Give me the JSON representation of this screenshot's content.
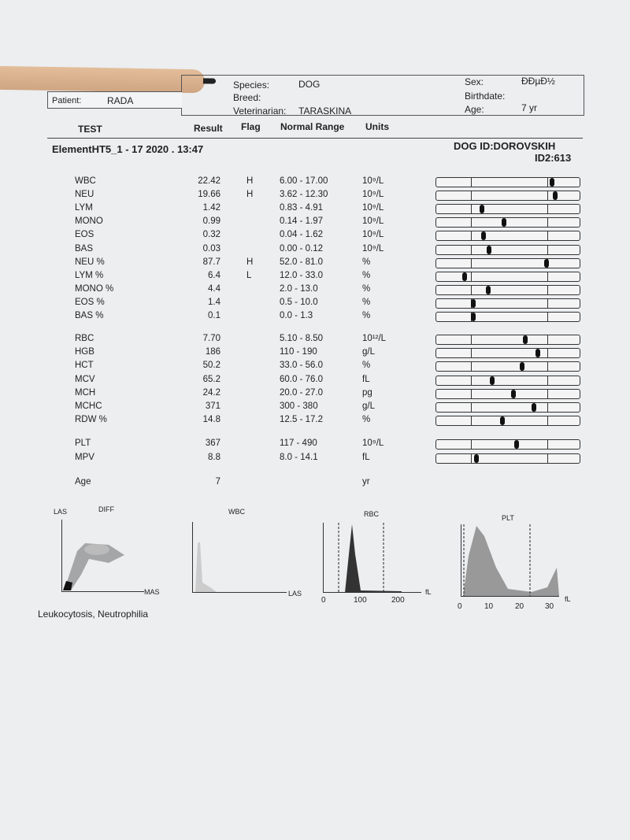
{
  "header": {
    "species_label": "Species:",
    "species": "DOG",
    "breed_label": "Breed:",
    "breed": "",
    "vet_label": "Veterinarian:",
    "vet": "TARASKINA",
    "sex_label": "Sex:",
    "sex": "ÐÐµÐ½",
    "birthdate_label": "Birthdate:",
    "age_label": "Age:",
    "age": "7 yr",
    "patient_label": "Patient:",
    "patient": "RADA"
  },
  "columns": {
    "test": "TEST",
    "result": "Result",
    "flag": "Flag",
    "range": "Normal Range",
    "units": "Units"
  },
  "run": {
    "title": "ElementHT5_1 - 17  2020 . 13:47",
    "id1": "DOG  ID:DOROVSKIH",
    "id2": "ID2:613"
  },
  "groups": [
    [
      {
        "name": "WBC",
        "result": "22.42",
        "flag": "H",
        "range": "6.00 - 17.00",
        "units": "10⁹/L",
        "pos": 0.81
      },
      {
        "name": "NEU",
        "result": "19.66",
        "flag": "H",
        "range": "3.62 - 12.30",
        "units": "10⁹/L",
        "pos": 0.83
      },
      {
        "name": "LYM",
        "result": "1.42",
        "flag": "",
        "range": "0.83 - 4.91",
        "units": "10⁹/L",
        "pos": 0.32
      },
      {
        "name": "MONO",
        "result": "0.99",
        "flag": "",
        "range": "0.14 - 1.97",
        "units": "10⁹/L",
        "pos": 0.47
      },
      {
        "name": "EOS",
        "result": "0.32",
        "flag": "",
        "range": "0.04 - 1.62",
        "units": "10⁹/L",
        "pos": 0.33
      },
      {
        "name": "BAS",
        "result": "0.03",
        "flag": "",
        "range": "0.00 - 0.12",
        "units": "10⁹/L",
        "pos": 0.37
      },
      {
        "name": "NEU %",
        "result": "87.7",
        "flag": "H",
        "range": "52.0 - 81.0",
        "units": "%",
        "pos": 0.77
      },
      {
        "name": "LYM %",
        "result": "6.4",
        "flag": "L",
        "range": "12.0 - 33.0",
        "units": "%",
        "pos": 0.2
      },
      {
        "name": "MONO %",
        "result": "4.4",
        "flag": "",
        "range": "2.0 - 13.0",
        "units": "%",
        "pos": 0.36
      },
      {
        "name": "EOS %",
        "result": "1.4",
        "flag": "",
        "range": "0.5 - 10.0",
        "units": "%",
        "pos": 0.26
      },
      {
        "name": "BAS %",
        "result": "0.1",
        "flag": "",
        "range": "0.0 - 1.3",
        "units": "%",
        "pos": 0.26
      }
    ],
    [
      {
        "name": "RBC",
        "result": "7.70",
        "flag": "",
        "range": "5.10 - 8.50",
        "units": "10¹²/L",
        "pos": 0.62
      },
      {
        "name": "HGB",
        "result": "186",
        "flag": "",
        "range": "110 - 190",
        "units": "g/L",
        "pos": 0.71
      },
      {
        "name": "HCT",
        "result": "50.2",
        "flag": "",
        "range": "33.0 - 56.0",
        "units": "%",
        "pos": 0.6
      },
      {
        "name": "MCV",
        "result": "65.2",
        "flag": "",
        "range": "60.0 - 76.0",
        "units": "fL",
        "pos": 0.39
      },
      {
        "name": "MCH",
        "result": "24.2",
        "flag": "",
        "range": "20.0 - 27.0",
        "units": "pg",
        "pos": 0.54
      },
      {
        "name": "MCHC",
        "result": "371",
        "flag": "",
        "range": "300 - 380",
        "units": "g/L",
        "pos": 0.68
      },
      {
        "name": "RDW %",
        "result": "14.8",
        "flag": "",
        "range": "12.5 - 17.2",
        "units": "%",
        "pos": 0.46
      }
    ],
    [
      {
        "name": "PLT",
        "result": "367",
        "flag": "",
        "range": "117 - 490",
        "units": "10⁹/L",
        "pos": 0.56
      },
      {
        "name": "MPV",
        "result": "8.8",
        "flag": "",
        "range": "8.0 - 14.1",
        "units": "fL",
        "pos": 0.28
      }
    ],
    [
      {
        "name": "Age",
        "result": "7",
        "flag": "",
        "range": "",
        "units": "yr"
      }
    ]
  ],
  "graphs": {
    "diff_y": "LAS",
    "diff_title": "DIFF",
    "diff_x": "MAS",
    "wbc_title": "WBC",
    "wbc_x": "LAS",
    "rbc_title": "RBC",
    "rbc_x": "fL",
    "rbc_ticks": [
      "0",
      "100",
      "200"
    ],
    "plt_title": "PLT",
    "plt_x": "fL",
    "plt_ticks": [
      "0",
      "10",
      "20",
      "30"
    ]
  },
  "interpretation": "Leukocytosis, Neutrophilia"
}
